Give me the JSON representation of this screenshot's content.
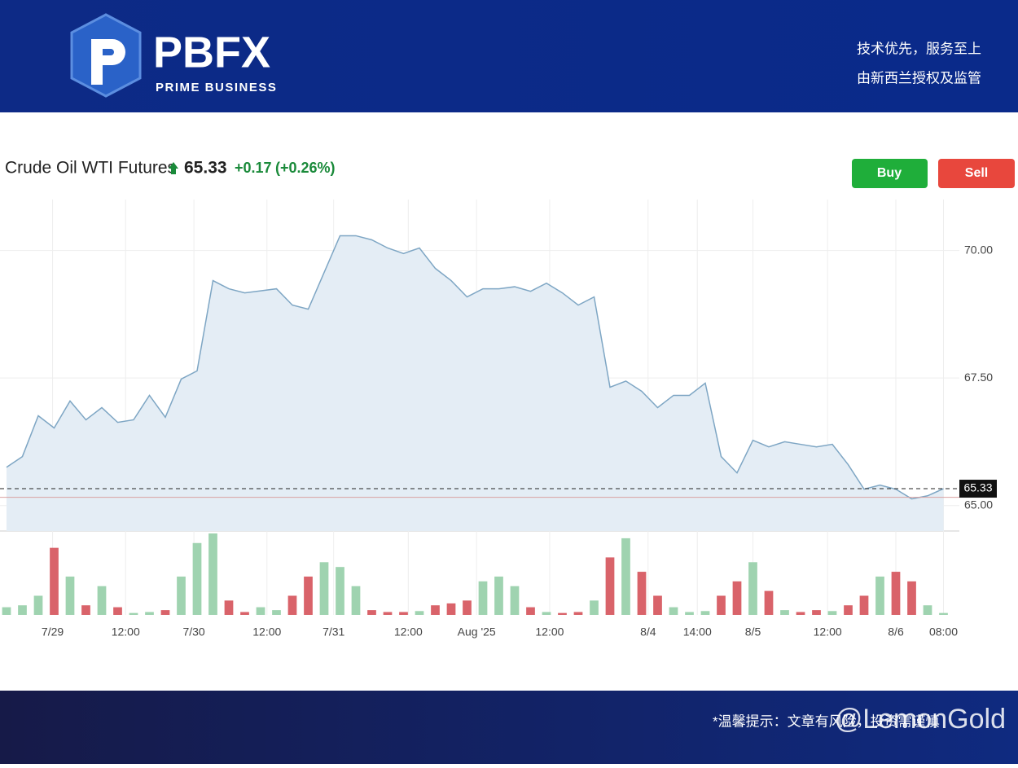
{
  "header": {
    "brand": "PBFX",
    "tagline": "PRIME BUSINESS",
    "slogan1": "技术优先，服务至上",
    "slogan2": "由新西兰授权及监管"
  },
  "chart_data": {
    "type": "line",
    "title": "Crude Oil WTI Futures",
    "price_change": "+0.17",
    "percent_change": "(+0.26%)",
    "last_price": 65.33,
    "previous_close": 65.16,
    "color": "#7ea6c4",
    "fill": "#e4edf5",
    "grid": true,
    "x": [
      0,
      1,
      2,
      3,
      4,
      5,
      6,
      7,
      8,
      9,
      10,
      11,
      12,
      13,
      14,
      15,
      16,
      17,
      18,
      19,
      20,
      21,
      22,
      23,
      24,
      25,
      26,
      27,
      28,
      29,
      30,
      31,
      32,
      33,
      34,
      35,
      36,
      37,
      38,
      39,
      40,
      41,
      42,
      43,
      44,
      45,
      46,
      47,
      48,
      49,
      50,
      51,
      52,
      53,
      54,
      55,
      56,
      57,
      58,
      59
    ],
    "values": [
      65.75,
      65.96,
      66.76,
      66.52,
      67.05,
      66.68,
      66.92,
      66.63,
      66.68,
      67.16,
      66.73,
      67.48,
      67.64,
      69.41,
      69.25,
      69.17,
      69.21,
      69.25,
      68.93,
      68.85,
      69.57,
      70.29,
      70.29,
      70.21,
      70.05,
      69.94,
      70.05,
      69.65,
      69.41,
      69.09,
      69.25,
      69.25,
      69.29,
      69.2,
      69.36,
      69.17,
      68.93,
      69.09,
      67.32,
      67.44,
      67.24,
      66.92,
      67.16,
      67.16,
      67.4,
      65.96,
      65.64,
      66.28,
      66.15,
      66.25,
      66.2,
      66.15,
      66.2,
      65.8,
      65.32,
      65.4,
      65.32,
      65.13,
      65.19,
      65.33
    ],
    "volume": [
      8,
      10,
      20,
      70,
      40,
      10,
      30,
      8,
      2,
      3,
      5,
      40,
      75,
      85,
      15,
      3,
      8,
      5,
      20,
      40,
      55,
      50,
      30,
      5,
      3,
      3,
      4,
      10,
      12,
      15,
      35,
      40,
      30,
      8,
      3,
      2,
      3,
      15,
      60,
      80,
      45,
      20,
      8,
      3,
      4,
      20,
      35,
      55,
      25,
      5,
      3,
      5,
      4,
      10,
      20,
      40,
      45,
      35,
      10,
      2
    ],
    "up_color": "#9fd3b0",
    "down_color": "#d9636a",
    "xlim": [
      0,
      60
    ],
    "ylim": [
      64.5,
      71.0
    ],
    "xticks": [
      {
        "value": 2.9,
        "label": "7/29"
      },
      {
        "value": 7.5,
        "label": "12:00"
      },
      {
        "value": 11.8,
        "label": "7/30"
      },
      {
        "value": 16.4,
        "label": "12:00"
      },
      {
        "value": 20.6,
        "label": "7/31"
      },
      {
        "value": 25.3,
        "label": "12:00"
      },
      {
        "value": 29.6,
        "label": "Aug '25"
      },
      {
        "value": 34.2,
        "label": "12:00"
      },
      {
        "value": 40.4,
        "label": "8/4"
      },
      {
        "value": 43.5,
        "label": "14:00"
      },
      {
        "value": 47,
        "label": "8/5"
      },
      {
        "value": 51.7,
        "label": "12:00"
      },
      {
        "value": 56,
        "label": "8/6"
      },
      {
        "value": 59,
        "label": "08:00"
      }
    ],
    "yticks": [
      {
        "value": 65,
        "label": "65.00"
      },
      {
        "value": 67.5,
        "label": "67.50"
      },
      {
        "value": 70,
        "label": "70.00"
      }
    ]
  },
  "buttons": {
    "buy": "Buy",
    "sell": "Sell"
  },
  "footer": {
    "notice": "*温馨提示：文章有风险，投资需谨慎",
    "watermark": "@LemonGold"
  }
}
